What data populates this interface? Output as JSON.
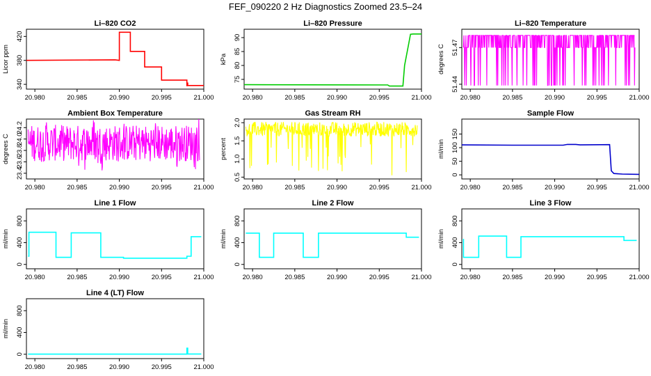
{
  "title": "FEF_090220  2 Hz Diagnostics Zoomed 23.5–24",
  "chart_data": [
    {
      "type": "line",
      "title": "Li–820 CO2",
      "ylabel": "Licor ppm",
      "color": "#ff0000",
      "xlim": [
        20.979,
        21.0
      ],
      "x_ticks": [
        "20.980",
        "20.985",
        "20.990",
        "20.995",
        "21.000"
      ],
      "ylim": [
        332,
        432
      ],
      "y_ticks": [
        "340",
        "380",
        "420"
      ],
      "series": [
        {
          "x": [
            20.979,
            20.9895,
            20.99,
            20.99,
            20.9913,
            20.9913,
            20.993,
            20.993,
            20.995,
            20.995,
            20.998,
            20.998,
            20.9981,
            20.9981,
            21.0
          ],
          "y": [
            380,
            381,
            380,
            427,
            427,
            395,
            395,
            369,
            369,
            347,
            347,
            337,
            343,
            338,
            338
          ]
        }
      ]
    },
    {
      "type": "line",
      "title": "Li–820 Pressure",
      "ylabel": "kPa",
      "color": "#00cc00",
      "xlim": [
        20.979,
        21.0
      ],
      "x_ticks": [
        "20.980",
        "20.985",
        "20.990",
        "20.995",
        "21.000"
      ],
      "ylim": [
        71.5,
        93
      ],
      "y_ticks": [
        "75",
        "80",
        "85",
        "90"
      ],
      "series": [
        {
          "x": [
            20.979,
            20.996,
            20.9962,
            20.9978,
            20.998,
            20.9985,
            20.9987,
            20.999,
            21.0
          ],
          "y": [
            73.1,
            73.0,
            72.6,
            72.6,
            80,
            88,
            91.2,
            91.3,
            91.3
          ]
        }
      ]
    },
    {
      "type": "line",
      "title": "Li–820 Temperature",
      "ylabel": "degrees C",
      "color": "#ff00ff",
      "xlim": [
        20.979,
        21.0
      ],
      "x_ticks": [
        "20.980",
        "20.985",
        "20.990",
        "20.995",
        "21.000"
      ],
      "ylim": [
        51.436,
        51.485
      ],
      "y_ticks": [
        "51.44",
        "51.47"
      ],
      "pattern": "binary",
      "levels": [
        51.439,
        51.47,
        51.48
      ],
      "x_range": [
        20.9792,
        20.9995
      ]
    },
    {
      "type": "line",
      "title": "Ambient Box Temperature",
      "ylabel": "degrees C",
      "color": "#ff00ff",
      "xlim": [
        20.979,
        21.0
      ],
      "x_ticks": [
        "20.980",
        "20.985",
        "20.990",
        "20.995",
        "21.000"
      ],
      "ylim": [
        23.3,
        24.35
      ],
      "y_ticks": [
        "23.4",
        "23.6",
        "23.8",
        "24.0",
        "24.2"
      ],
      "pattern": "noise",
      "center": 23.93,
      "spread": 0.32,
      "x_range": [
        20.9792,
        20.9995
      ]
    },
    {
      "type": "line",
      "title": "Gas Stream RH",
      "ylabel": "percent",
      "color": "#ffff00",
      "xlim": [
        20.979,
        21.0
      ],
      "x_ticks": [
        "20.980",
        "20.985",
        "20.990",
        "20.995",
        "21.000"
      ],
      "ylim": [
        0.45,
        2.1
      ],
      "y_ticks": [
        "0.5",
        "1.0",
        "1.5",
        "2.0"
      ],
      "pattern": "noise-dips",
      "center": 1.82,
      "spread": 0.2,
      "x_range": [
        20.9792,
        20.9995
      ]
    },
    {
      "type": "line",
      "title": "Sample Flow",
      "ylabel": "ml/min",
      "color": "#0000cc",
      "xlim": [
        20.979,
        21.0
      ],
      "x_ticks": [
        "20.980",
        "20.985",
        "20.990",
        "20.995",
        "21.000"
      ],
      "ylim": [
        -15,
        205
      ],
      "y_ticks": [
        "0",
        "50",
        "100",
        "150"
      ],
      "series": [
        {
          "x": [
            20.979,
            20.985,
            20.991,
            20.9915,
            20.9925,
            20.993,
            20.9965,
            20.9967,
            20.997,
            20.998,
            21.0
          ],
          "y": [
            110,
            109,
            109,
            112,
            112,
            110,
            111,
            15,
            5,
            3,
            2
          ]
        }
      ]
    },
    {
      "type": "line",
      "title": "Line 1 Flow",
      "ylabel": "ml/min",
      "color": "#00ffff",
      "xlim": [
        20.979,
        21.0
      ],
      "x_ticks": [
        "20.980",
        "20.985",
        "20.990",
        "20.995",
        "21.000"
      ],
      "ylim": [
        -80,
        1020
      ],
      "y_ticks": [
        "0",
        "400",
        "800"
      ],
      "series": [
        {
          "x": [
            20.9792,
            20.9793,
            20.9793,
            20.9825,
            20.9825,
            20.9843,
            20.9843,
            20.9878,
            20.9878,
            20.9905,
            20.9905,
            20.998,
            20.998,
            20.9985,
            20.9985,
            20.9997
          ],
          "y": [
            150,
            150,
            590,
            590,
            130,
            130,
            580,
            580,
            130,
            130,
            115,
            115,
            150,
            150,
            510,
            510
          ]
        }
      ]
    },
    {
      "type": "line",
      "title": "Line 2 Flow",
      "ylabel": "ml/min",
      "color": "#00ffff",
      "xlim": [
        20.979,
        21.0
      ],
      "x_ticks": [
        "20.980",
        "20.985",
        "20.990",
        "20.995",
        "21.000"
      ],
      "ylim": [
        -80,
        1020
      ],
      "y_ticks": [
        "0",
        "400",
        "800"
      ],
      "series": [
        {
          "x": [
            20.9792,
            20.9808,
            20.9808,
            20.9825,
            20.9825,
            20.986,
            20.986,
            20.9878,
            20.9878,
            20.9982,
            20.9982,
            20.9997
          ],
          "y": [
            575,
            575,
            130,
            130,
            575,
            575,
            130,
            130,
            575,
            575,
            500,
            500
          ]
        }
      ]
    },
    {
      "type": "line",
      "title": "Line 3 Flow",
      "ylabel": "ml/min",
      "color": "#00ffff",
      "xlim": [
        20.979,
        21.0
      ],
      "x_ticks": [
        "20.980",
        "20.985",
        "20.990",
        "20.995",
        "21.000"
      ],
      "ylim": [
        -80,
        1020
      ],
      "y_ticks": [
        "0",
        "400",
        "800"
      ],
      "series": [
        {
          "x": [
            20.9792,
            20.9792,
            20.9793,
            20.981,
            20.981,
            20.9843,
            20.9843,
            20.986,
            20.986,
            20.9982,
            20.9982,
            20.9997
          ],
          "y": [
            470,
            130,
            130,
            130,
            520,
            520,
            130,
            130,
            510,
            510,
            440,
            440
          ]
        }
      ]
    },
    {
      "type": "line",
      "title": "Line 4 (LT) Flow",
      "ylabel": "ml/min",
      "color": "#00ffff",
      "xlim": [
        20.979,
        21.0
      ],
      "x_ticks": [
        "20.980",
        "20.985",
        "20.990",
        "20.995",
        "21.000"
      ],
      "ylim": [
        -80,
        1020
      ],
      "y_ticks": [
        "0",
        "400",
        "800"
      ],
      "series": [
        {
          "x": [
            20.9792,
            20.998,
            20.998,
            20.9981,
            20.9981,
            20.9997
          ],
          "y": [
            2,
            2,
            110,
            110,
            5,
            5
          ]
        }
      ]
    }
  ]
}
